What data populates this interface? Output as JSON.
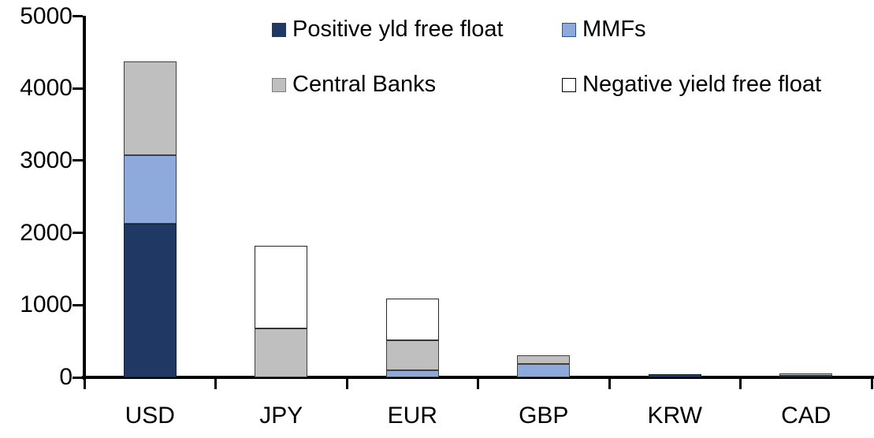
{
  "chart_data": {
    "type": "bar",
    "stacked": true,
    "title": "",
    "categories": [
      "USD",
      "JPY",
      "EUR",
      "GBP",
      "KRW",
      "CAD"
    ],
    "series": [
      {
        "name": "Positive yld free float",
        "color": "#1F3864",
        "border": "#14223E",
        "values": [
          2130,
          0,
          0,
          0,
          45,
          25
        ]
      },
      {
        "name": "MMFs",
        "color": "#8EA9DB",
        "border": "#404040",
        "values": [
          950,
          0,
          100,
          190,
          0,
          0
        ]
      },
      {
        "name": "Central Banks",
        "color": "#BFBFBF",
        "border": "#404040",
        "values": [
          1290,
          675,
          415,
          115,
          0,
          30
        ]
      },
      {
        "name": "Negative yield free float",
        "color": "#FFFFFF",
        "border": "#262626",
        "values": [
          0,
          1150,
          575,
          0,
          0,
          0
        ]
      }
    ],
    "ylim": [
      0,
      5000
    ],
    "yticks": [
      0,
      1000,
      2000,
      3000,
      4000,
      5000
    ],
    "xlabel": "",
    "ylabel": "",
    "grid": false,
    "legend_position": "top-inside",
    "legend_swatch_borders": [
      "#1F3864",
      "#2F5496",
      "#7F7F7F",
      "#000000"
    ]
  }
}
